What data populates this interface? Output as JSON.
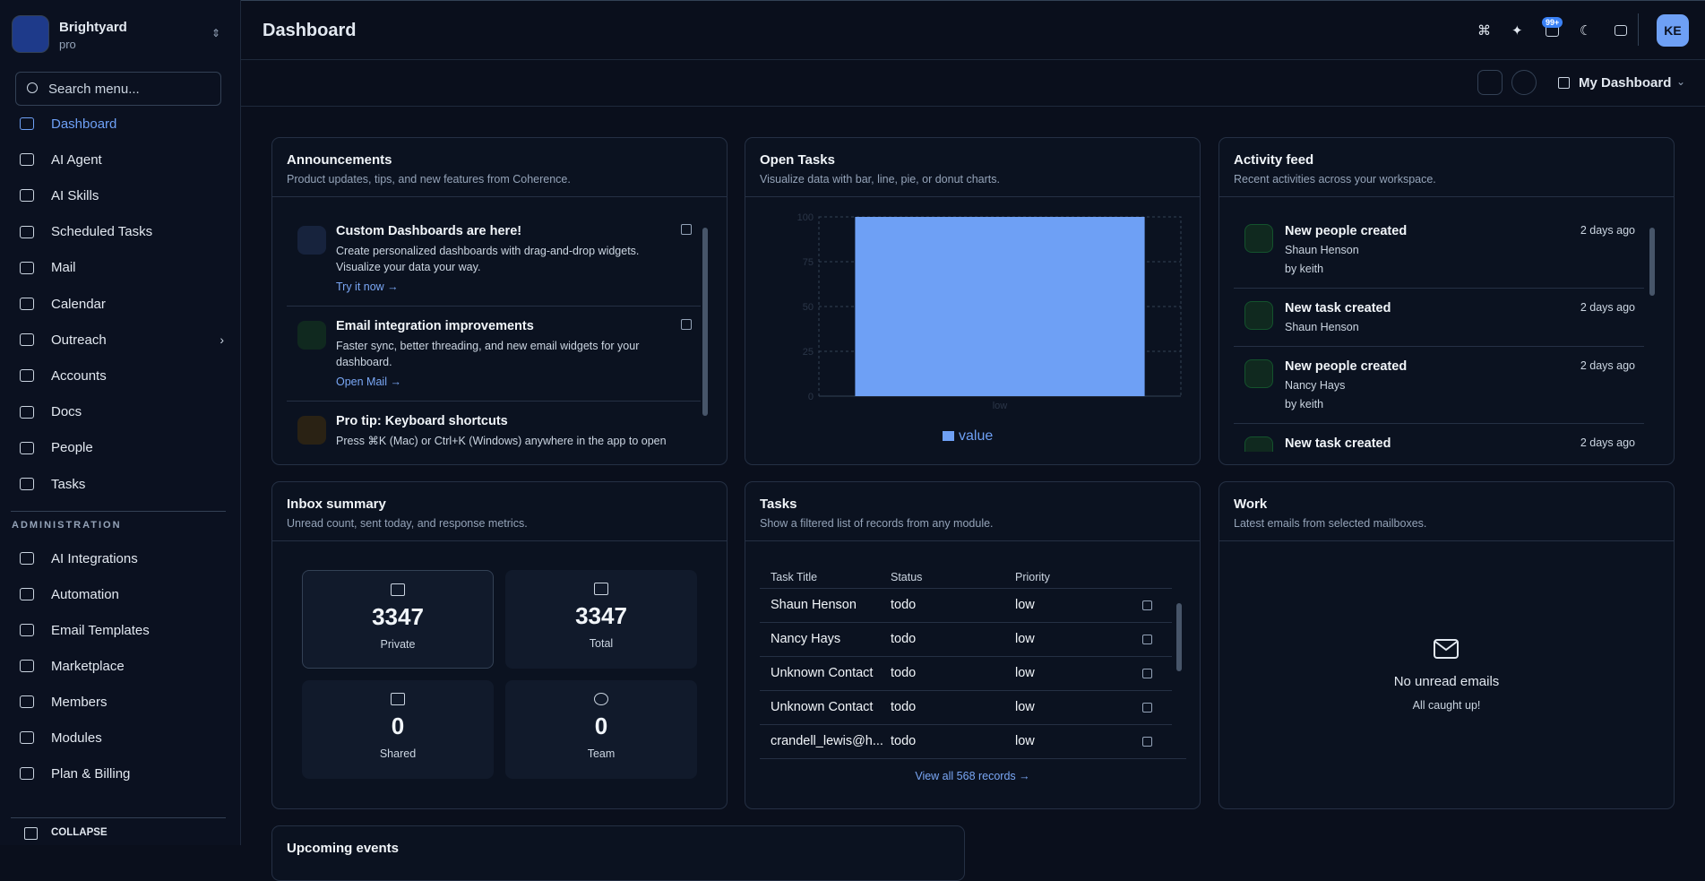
{
  "sidebar": {
    "org": "Brightyard",
    "plan": "pro",
    "search_placeholder": "Search menu...",
    "menu": [
      "Dashboard",
      "AI Agent",
      "AI Skills",
      "Scheduled Tasks",
      "Mail",
      "Calendar",
      "Outreach",
      "Accounts",
      "Docs",
      "People",
      "Tasks"
    ],
    "section": "ADMINISTRATION",
    "admin_menu": [
      "AI Integrations",
      "Automation",
      "Email Templates",
      "Marketplace",
      "Members",
      "Modules",
      "Plan & Billing"
    ],
    "collapse": "COLLAPSE"
  },
  "header": {
    "title": "Dashboard",
    "badge": "99+",
    "avatar": "KE",
    "dashboard_select": "My Dashboard"
  },
  "widgets": {
    "announcements": {
      "title": "Announcements",
      "subtitle": "Product updates, tips, and new features from Coherence.",
      "items": [
        {
          "title": "Custom Dashboards are here!",
          "text": "Create personalized dashboards with drag-and-drop widgets. Visualize your data your way.",
          "link": "Try it now →"
        },
        {
          "title": "Email integration improvements",
          "text": "Faster sync, better threading, and new email widgets for your dashboard.",
          "link": "Open Mail →"
        },
        {
          "title": "Pro tip: Keyboard shortcuts",
          "text": "Press ⌘K (Mac) or Ctrl+K (Windows) anywhere in the app to open"
        }
      ]
    },
    "open_tasks": {
      "title": "Open Tasks",
      "subtitle": "Visualize data with bar, line, pie, or donut charts."
    },
    "activity": {
      "title": "Activity feed",
      "subtitle": "Recent activities across your workspace.",
      "items": [
        {
          "title": "New people created",
          "name": "Shaun Henson",
          "by": "by keith",
          "time": "2 days ago"
        },
        {
          "title": "New task created",
          "name": "Shaun Henson",
          "time": "2 days ago"
        },
        {
          "title": "New people created",
          "name": "Nancy Hays",
          "by": "by keith",
          "time": "2 days ago"
        },
        {
          "title": "New task created",
          "time": "2 days ago"
        }
      ]
    },
    "inbox": {
      "title": "Inbox summary",
      "subtitle": "Unread count, sent today, and response metrics.",
      "stats": [
        {
          "value": 3347,
          "label": "Private"
        },
        {
          "value": 3347,
          "label": "Total"
        },
        {
          "value": 0,
          "label": "Shared"
        },
        {
          "value": 0,
          "label": "Team"
        }
      ]
    },
    "tasks": {
      "title": "Tasks",
      "subtitle": "Show a filtered list of records from any module.",
      "columns": [
        "Task Title",
        "Status",
        "Priority"
      ],
      "rows": [
        [
          "Shaun Henson",
          "todo",
          "low"
        ],
        [
          "Nancy Hays",
          "todo",
          "low"
        ],
        [
          "Unknown Contact",
          "todo",
          "low"
        ],
        [
          "Unknown Contact",
          "todo",
          "low"
        ],
        [
          "crandell_lewis@h...",
          "todo",
          "low"
        ]
      ],
      "footer": "View all 568 records →"
    },
    "work": {
      "title": "Work",
      "subtitle": "Latest emails from selected mailboxes.",
      "empty_title": "No unread emails",
      "empty_text": "All caught up!"
    },
    "upcoming": {
      "title": "Upcoming events"
    }
  },
  "chart_data": {
    "type": "bar",
    "categories": [
      "low"
    ],
    "series": [
      {
        "name": "value",
        "color": "#6ea0f5",
        "values": [
          100
        ]
      }
    ],
    "ylim": [
      0,
      100
    ],
    "yticks": [
      0,
      25,
      50,
      75,
      100
    ],
    "grid": true
  }
}
